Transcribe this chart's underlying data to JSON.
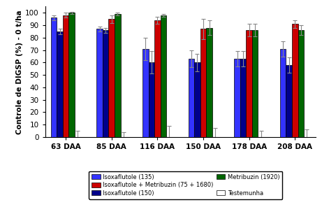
{
  "groups": [
    "63 DAA",
    "85 DAA",
    "116 DAA",
    "150 DAA",
    "178 DAA",
    "208 DAA"
  ],
  "series": [
    {
      "label": "Isoxaflutole (135)",
      "color": "#3333FF",
      "values": [
        96,
        87,
        71,
        63,
        63,
        71
      ],
      "errors": [
        2,
        2,
        9,
        7,
        6,
        6
      ]
    },
    {
      "label": "Isoxaflutole (150)",
      "color": "#00008B",
      "values": [
        85,
        86,
        60,
        60,
        63,
        58
      ],
      "errors": [
        2,
        2,
        9,
        7,
        6,
        6
      ]
    },
    {
      "label": "Isoxaflutole + Metribuzin (75 + 1680)",
      "color": "#CC0000",
      "values": [
        98,
        95,
        94,
        87,
        86,
        91
      ],
      "errors": [
        2,
        3,
        3,
        8,
        5,
        3
      ]
    },
    {
      "label": "Metribuzin (1920)",
      "color": "#006600",
      "values": [
        100,
        99,
        98,
        88,
        86,
        86
      ],
      "errors": [
        1,
        1,
        1,
        6,
        5,
        4
      ]
    },
    {
      "label": "Testemunha",
      "color": "#FFFFFF",
      "values": [
        0,
        0,
        0,
        0,
        0,
        0
      ],
      "errors": [
        5,
        4,
        9,
        7,
        5,
        6
      ]
    }
  ],
  "ylabel": "Controle de DIGSP (%) - 0 t/ha",
  "ylim": [
    0,
    105
  ],
  "yticks": [
    0,
    10,
    20,
    30,
    40,
    50,
    60,
    70,
    80,
    90,
    100
  ],
  "bar_width": 0.13,
  "background_color": "#FFFFFF",
  "legend_fontsize": 6.0,
  "axis_fontsize": 7.5,
  "tick_fontsize": 7.5
}
